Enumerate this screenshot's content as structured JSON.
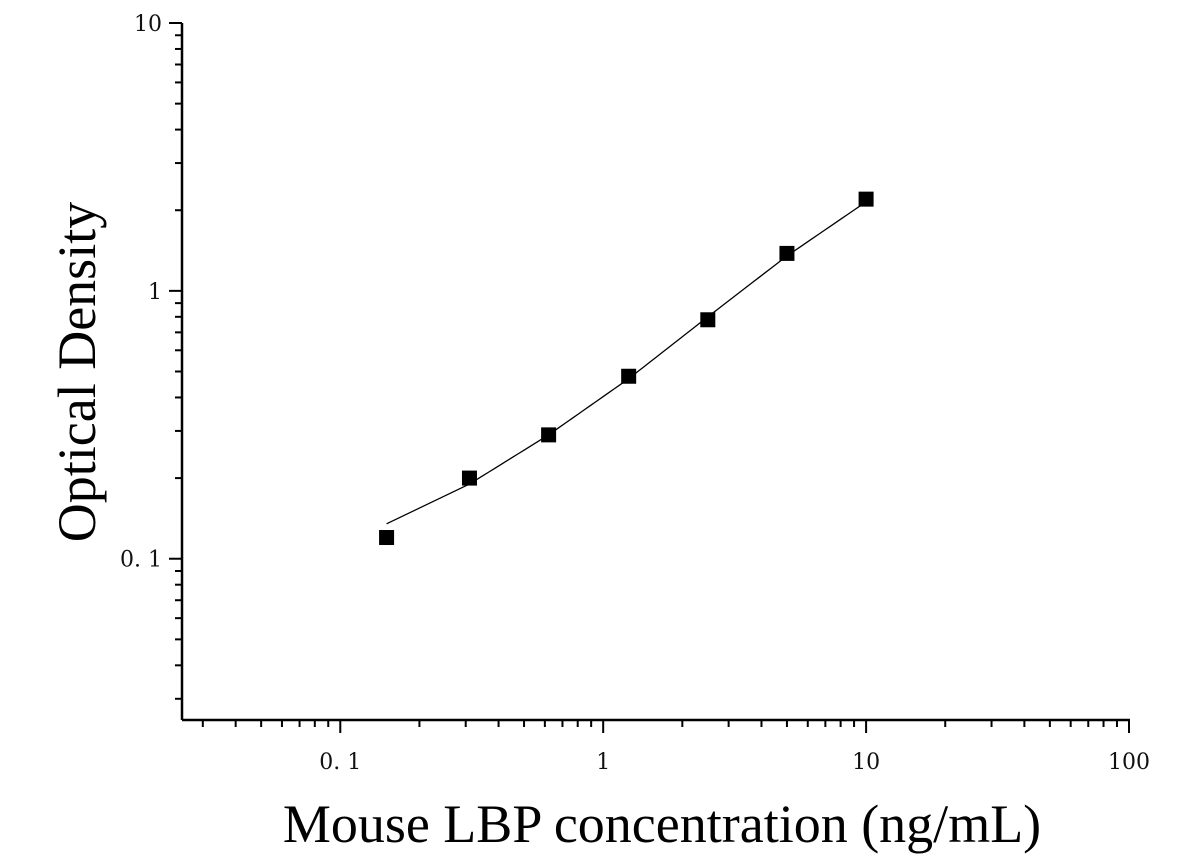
{
  "chart_data": {
    "type": "scatter",
    "title": "",
    "xlabel": "Mouse LBP concentration (ng/mL)",
    "ylabel": "Optical Density",
    "x_scale": "log",
    "y_scale": "log",
    "xlim": [
      0.025,
      100
    ],
    "ylim": [
      0.025,
      10
    ],
    "x_ticks": [
      {
        "value": 0.1,
        "label": "0. 1"
      },
      {
        "value": 1,
        "label": "1"
      },
      {
        "value": 10,
        "label": "10"
      },
      {
        "value": 100,
        "label": "100"
      }
    ],
    "y_ticks": [
      {
        "value": 0.1,
        "label": "0. 1"
      },
      {
        "value": 1,
        "label": "1"
      },
      {
        "value": 10,
        "label": "10"
      }
    ],
    "grid": false,
    "legend": "none",
    "marker": "square",
    "color": "#000000",
    "series": [
      {
        "x": [
          0.15,
          0.31,
          0.62,
          1.25,
          2.5,
          5,
          10
        ],
        "y": [
          0.12,
          0.2,
          0.29,
          0.48,
          0.78,
          1.38,
          2.2
        ]
      }
    ],
    "fit_curve": {
      "x": [
        0.15,
        0.31,
        0.62,
        1.25,
        2.5,
        5,
        10
      ],
      "y": [
        0.135,
        0.19,
        0.29,
        0.47,
        0.8,
        1.35,
        2.15
      ]
    }
  }
}
